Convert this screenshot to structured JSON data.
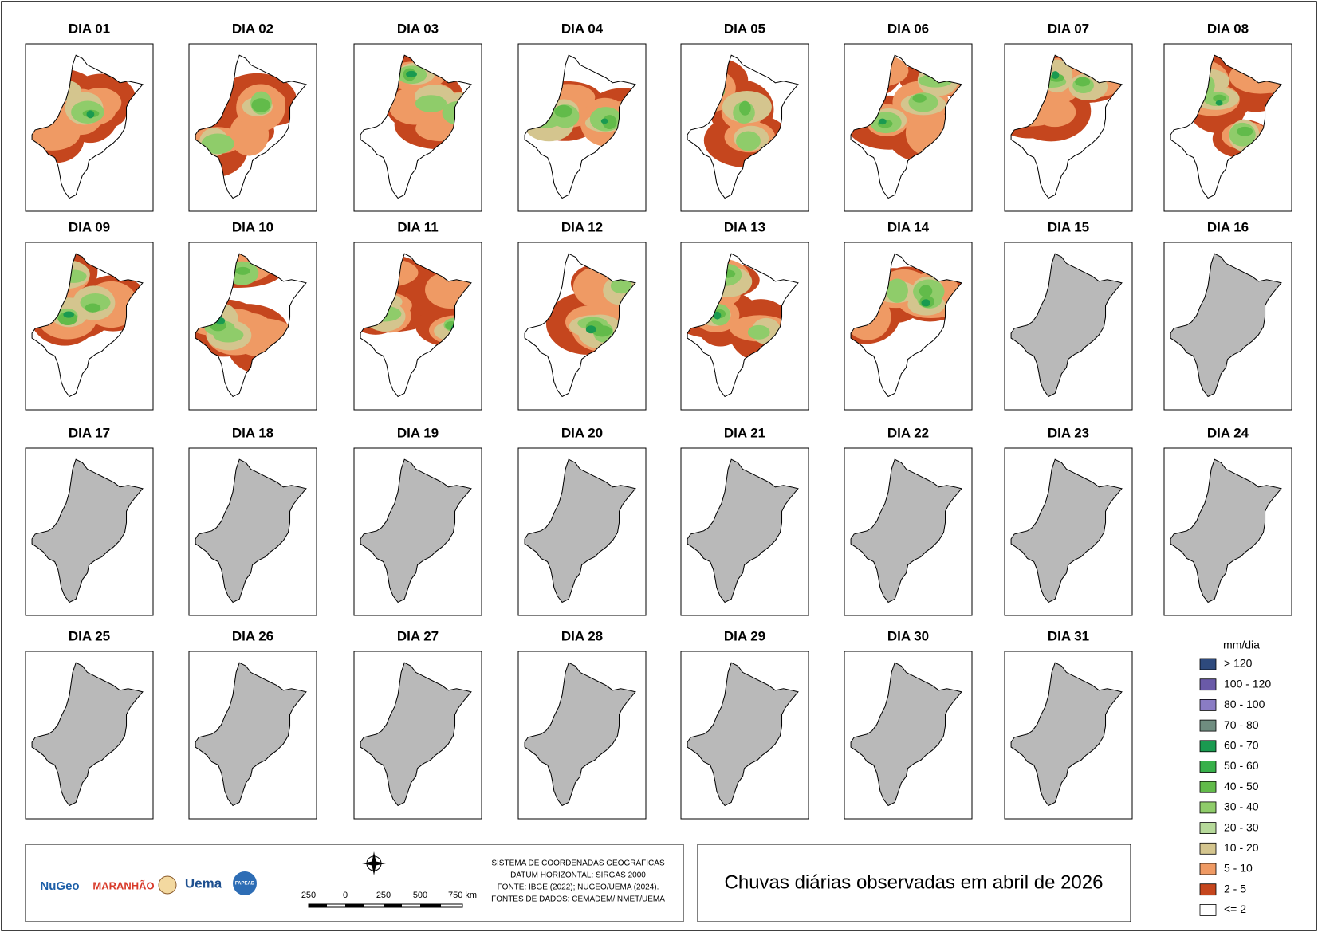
{
  "panels": [
    {
      "label": "DIA 01",
      "has_data": true
    },
    {
      "label": "DIA 02",
      "has_data": true
    },
    {
      "label": "DIA 03",
      "has_data": true
    },
    {
      "label": "DIA 04",
      "has_data": true
    },
    {
      "label": "DIA 05",
      "has_data": true
    },
    {
      "label": "DIA 06",
      "has_data": true
    },
    {
      "label": "DIA 07",
      "has_data": true
    },
    {
      "label": "DIA 08",
      "has_data": true
    },
    {
      "label": "DIA 09",
      "has_data": true
    },
    {
      "label": "DIA 10",
      "has_data": true
    },
    {
      "label": "DIA 11",
      "has_data": true
    },
    {
      "label": "DIA 12",
      "has_data": true
    },
    {
      "label": "DIA 13",
      "has_data": true
    },
    {
      "label": "DIA 14",
      "has_data": true
    },
    {
      "label": "DIA 15",
      "has_data": false
    },
    {
      "label": "DIA 16",
      "has_data": false
    },
    {
      "label": "DIA 17",
      "has_data": false
    },
    {
      "label": "DIA 18",
      "has_data": false
    },
    {
      "label": "DIA 19",
      "has_data": false
    },
    {
      "label": "DIA 20",
      "has_data": false
    },
    {
      "label": "DIA 21",
      "has_data": false
    },
    {
      "label": "DIA 22",
      "has_data": false
    },
    {
      "label": "DIA 23",
      "has_data": false
    },
    {
      "label": "DIA 24",
      "has_data": false
    },
    {
      "label": "DIA 25",
      "has_data": false
    },
    {
      "label": "DIA 26",
      "has_data": false
    },
    {
      "label": "DIA 27",
      "has_data": false
    },
    {
      "label": "DIA 28",
      "has_data": false
    },
    {
      "label": "DIA 29",
      "has_data": false
    },
    {
      "label": "DIA 30",
      "has_data": false
    },
    {
      "label": "DIA 31",
      "has_data": false
    }
  ],
  "legend": {
    "title": "mm/dia",
    "items": [
      {
        "label": "> 120",
        "color": "#2e4a7d"
      },
      {
        "label": "100 - 120",
        "color": "#6a5aa8"
      },
      {
        "label": "80 - 100",
        "color": "#8a7cc4"
      },
      {
        "label": "70 - 80",
        "color": "#6f8d80"
      },
      {
        "label": "60 - 70",
        "color": "#1a9a50"
      },
      {
        "label": "50 - 60",
        "color": "#37b04a"
      },
      {
        "label": "40 - 50",
        "color": "#62bb4a"
      },
      {
        "label": "30 - 40",
        "color": "#8fcc6a"
      },
      {
        "label": "20 - 30",
        "color": "#b6d99a"
      },
      {
        "label": "10 - 20",
        "color": "#d4c58e"
      },
      {
        "label": "5 - 10",
        "color": "#ef9a64"
      },
      {
        "label": "2 - 5",
        "color": "#c5461e"
      },
      {
        "label": "<= 2",
        "color": "#ffffff"
      }
    ]
  },
  "no_data_color": "#b9b9b9",
  "title": "Chuvas diárias observadas em abril de 2026",
  "credits": [
    "SISTEMA DE COORDENADAS GEOGRÁFICAS",
    "DATUM HORIZONTAL: SIRGAS 2000",
    "FONTE: IBGE (2022); NUGEO/UEMA (2024).",
    "FONTES DE DADOS: CEMADEM/INMET/UEMA"
  ],
  "scale_bar": [
    "250",
    "0",
    "250",
    "500",
    "750 km"
  ],
  "logos": [
    "NuGeo",
    "MARANHÃO",
    "Uema",
    "FAPEAD"
  ]
}
